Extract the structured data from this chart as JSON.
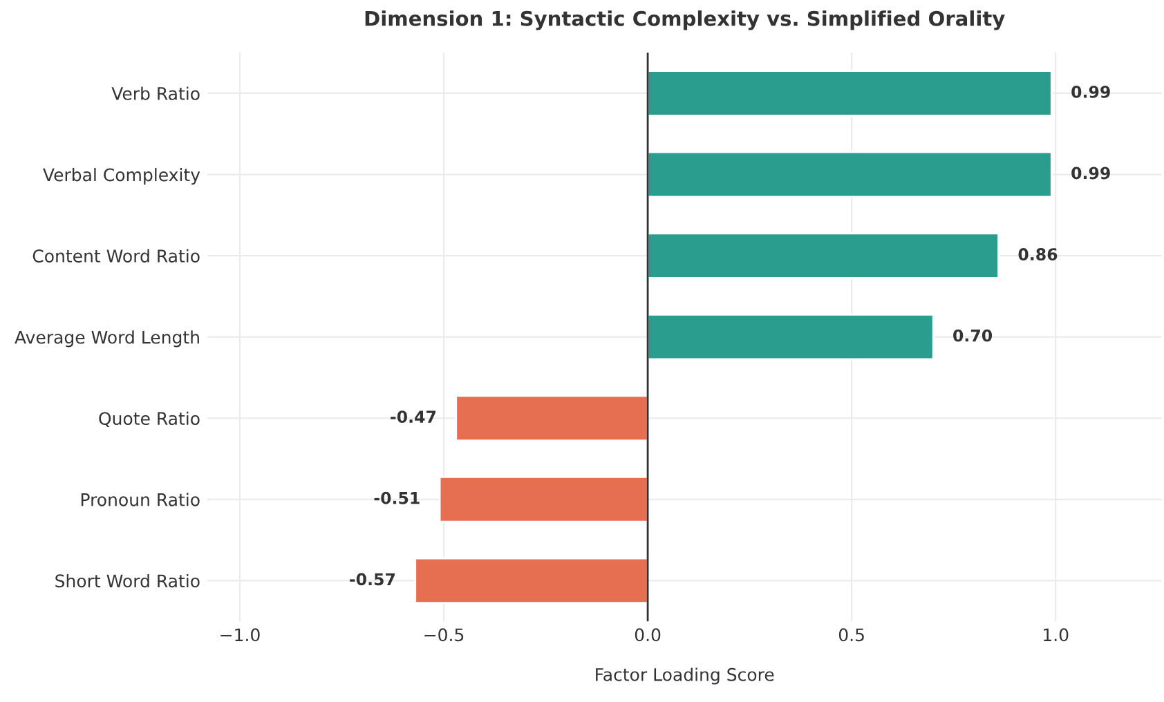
{
  "chart_data": {
    "type": "bar",
    "orientation": "horizontal",
    "title": "Dimension 1: Syntactic Complexity vs. Simplified Orality",
    "xlabel": "Factor Loading Score",
    "categories": [
      "Verb Ratio",
      "Verbal Complexity",
      "Content Word Ratio",
      "Average Word Length",
      "Quote Ratio",
      "Pronoun Ratio",
      "Short Word Ratio"
    ],
    "values": [
      0.99,
      0.99,
      0.86,
      0.7,
      -0.47,
      -0.51,
      -0.57
    ],
    "value_labels": [
      "0.99",
      "0.99",
      "0.86",
      "0.70",
      "-0.47",
      "-0.51",
      "-0.57"
    ],
    "colors": [
      "#2a9d8f",
      "#2a9d8f",
      "#2a9d8f",
      "#2a9d8f",
      "#e76f51",
      "#e76f51",
      "#e76f51"
    ],
    "xlim": [
      -1.08,
      1.26
    ],
    "xticks": [
      {
        "value": -1.0,
        "label": "−1.0"
      },
      {
        "value": -0.5,
        "label": "−0.5"
      },
      {
        "value": 0.0,
        "label": "0.0"
      },
      {
        "value": 0.5,
        "label": "0.5"
      },
      {
        "value": 1.0,
        "label": "1.0"
      }
    ],
    "ref_lines": [
      {
        "axis": "x",
        "value": 0,
        "color": "#333333"
      }
    ],
    "grid": true,
    "legend": false
  }
}
